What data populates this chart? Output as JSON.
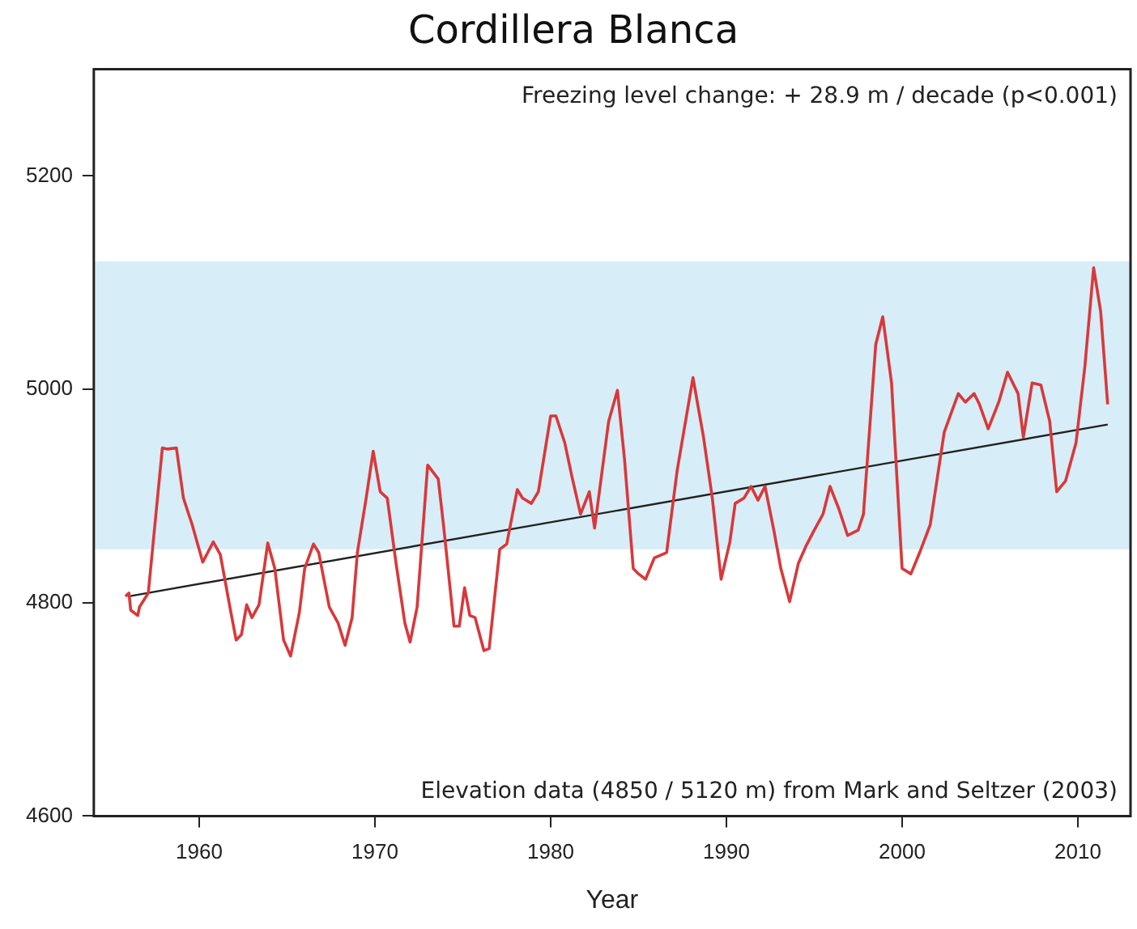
{
  "chart_data": {
    "type": "line",
    "title": "Cordillera Blanca",
    "xlabel": "Year",
    "annotations": [
      "Freezing level change: + 28.9 m / decade (p<0.001)",
      "Elevation data (4850 / 5120 m) from Mark and Seltzer (2003)"
    ],
    "xlim": [
      1954,
      2013
    ],
    "xticks": [
      1960,
      1970,
      1980,
      1990,
      2000,
      2010
    ],
    "ylim": [
      4600,
      5300
    ],
    "yticks": [
      4600,
      4800,
      5000,
      5200
    ],
    "grid": false,
    "legend": false,
    "marker": "none",
    "line_style": "solid",
    "bands": [
      {
        "axis": "y",
        "from": 4850,
        "to": 5120,
        "color": "#d7edf7"
      }
    ],
    "series": [
      {
        "color": "#d9383a",
        "x": [
          1955.8,
          1956.0,
          1956.1,
          1956.5,
          1956.6,
          1957.1,
          1957.9,
          1958.2,
          1958.7,
          1959.1,
          1959.6,
          1960.2,
          1960.8,
          1961.2,
          1961.8,
          1962.1,
          1962.4,
          1962.7,
          1963.0,
          1963.4,
          1963.9,
          1964.3,
          1964.8,
          1965.2,
          1965.7,
          1966.0,
          1966.5,
          1966.8,
          1967.4,
          1967.9,
          1968.3,
          1968.7,
          1969.0,
          1969.5,
          1969.9,
          1970.3,
          1970.7,
          1971.2,
          1971.7,
          1972.0,
          1972.4,
          1973.0,
          1973.6,
          1973.9,
          1974.5,
          1974.8,
          1975.1,
          1975.4,
          1975.7,
          1976.2,
          1976.5,
          1977.1,
          1977.5,
          1978.1,
          1978.4,
          1978.9,
          1979.3,
          1980.0,
          1980.3,
          1980.8,
          1981.2,
          1981.7,
          1982.2,
          1982.5,
          1983.3,
          1983.8,
          1984.2,
          1984.7,
          1985.0,
          1985.4,
          1985.9,
          1986.6,
          1987.2,
          1988.1,
          1988.7,
          1989.2,
          1989.7,
          1990.2,
          1990.5,
          1991.0,
          1991.4,
          1991.8,
          1992.2,
          1992.7,
          1993.1,
          1993.6,
          1994.1,
          1994.5,
          1995.0,
          1995.5,
          1995.9,
          1996.4,
          1996.9,
          1997.5,
          1997.8,
          1998.5,
          1998.9,
          1999.4,
          2000.0,
          2000.5,
          2001.0,
          2001.6,
          2002.4,
          2003.2,
          2003.6,
          2004.1,
          2004.4,
          2004.9,
          2005.5,
          2006.0,
          2006.6,
          2006.9,
          2007.4,
          2007.9,
          2008.4,
          2008.8,
          2009.3,
          2009.9,
          2010.4,
          2010.9,
          2011.3,
          2011.7
        ],
        "values": [
          4806,
          4809,
          4793,
          4788,
          4796,
          4809,
          4945,
          4944,
          4945,
          4898,
          4873,
          4838,
          4857,
          4845,
          4791,
          4765,
          4770,
          4798,
          4786,
          4798,
          4856,
          4832,
          4765,
          4750,
          4791,
          4832,
          4855,
          4847,
          4796,
          4781,
          4760,
          4786,
          4847,
          4898,
          4942,
          4904,
          4898,
          4837,
          4781,
          4763,
          4796,
          4929,
          4916,
          4873,
          4778,
          4778,
          4814,
          4788,
          4786,
          4755,
          4757,
          4850,
          4855,
          4906,
          4898,
          4893,
          4904,
          4975,
          4975,
          4950,
          4919,
          4883,
          4904,
          4870,
          4970,
          4999,
          4935,
          4832,
          4827,
          4822,
          4842,
          4847,
          4924,
          5011,
          4955,
          4898,
          4822,
          4857,
          4893,
          4898,
          4909,
          4896,
          4909,
          4868,
          4832,
          4801,
          4837,
          4852,
          4868,
          4883,
          4909,
          4888,
          4863,
          4868,
          4883,
          5042,
          5068,
          5006,
          4832,
          4827,
          4847,
          4873,
          4960,
          4996,
          4988,
          4996,
          4986,
          4963,
          4988,
          5016,
          4996,
          4955,
          5006,
          5004,
          4970,
          4904,
          4914,
          4950,
          5021,
          5114,
          5073,
          4986
        ]
      },
      {
        "color": "#222222",
        "x": [
          1956.0,
          2011.7
        ],
        "values": [
          4806,
          4967
        ]
      }
    ]
  }
}
